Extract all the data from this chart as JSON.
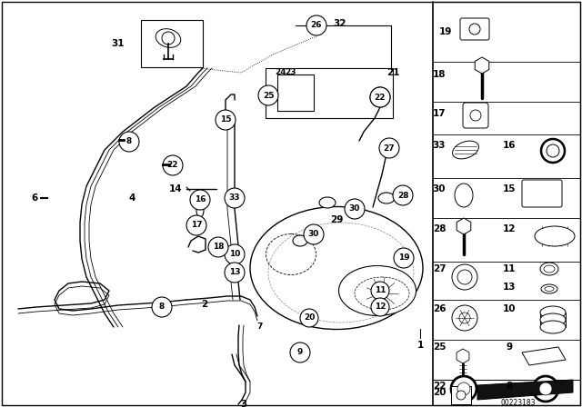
{
  "bg_color": "#ffffff",
  "line_color": "#000000",
  "diagram_id": "00223183",
  "figsize": [
    6.4,
    4.48
  ],
  "dpi": 100
}
